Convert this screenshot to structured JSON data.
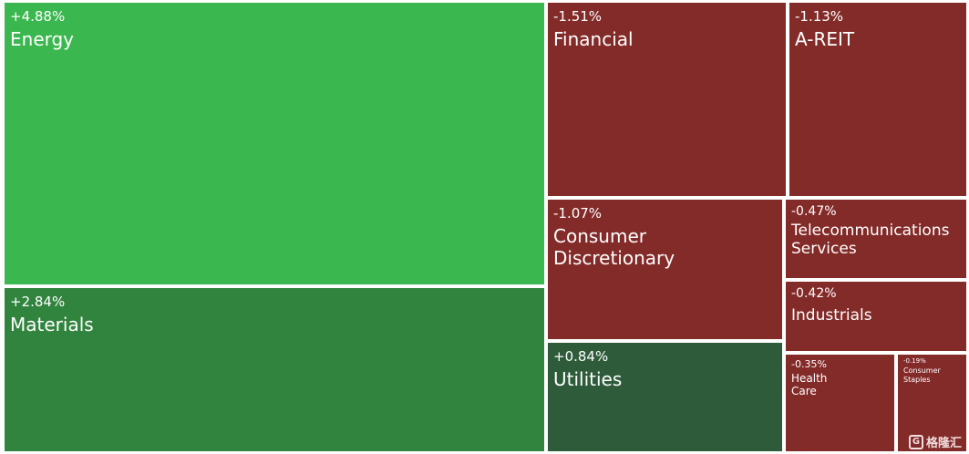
{
  "chart_data": {
    "type": "treemap",
    "items": [
      {
        "name": "Energy",
        "change": "+4.88%",
        "color": "#3bb74f"
      },
      {
        "name": "Materials",
        "change": "+2.84%",
        "color": "#31843e"
      },
      {
        "name": "Financial",
        "change": "-1.51%",
        "color": "#832b29"
      },
      {
        "name": "A-REIT",
        "change": "-1.13%",
        "color": "#832b29"
      },
      {
        "name": "Consumer\nDiscretionary",
        "change": "-1.07%",
        "color": "#832b29"
      },
      {
        "name": "Telecommunications\nServices",
        "change": "-0.47%",
        "color": "#832b29"
      },
      {
        "name": "Industrials",
        "change": "-0.42%",
        "color": "#832b29"
      },
      {
        "name": "Utilities",
        "change": "+0.84%",
        "color": "#2e5c3a"
      },
      {
        "name": "Health\nCare",
        "change": "-0.35%",
        "color": "#832b29"
      },
      {
        "name": "Consumer\nStaples",
        "change": "-0.19%",
        "color": "#832b29"
      }
    ]
  },
  "watermark": {
    "text": "格隆汇",
    "logo_icon": "g-logo-icon"
  }
}
